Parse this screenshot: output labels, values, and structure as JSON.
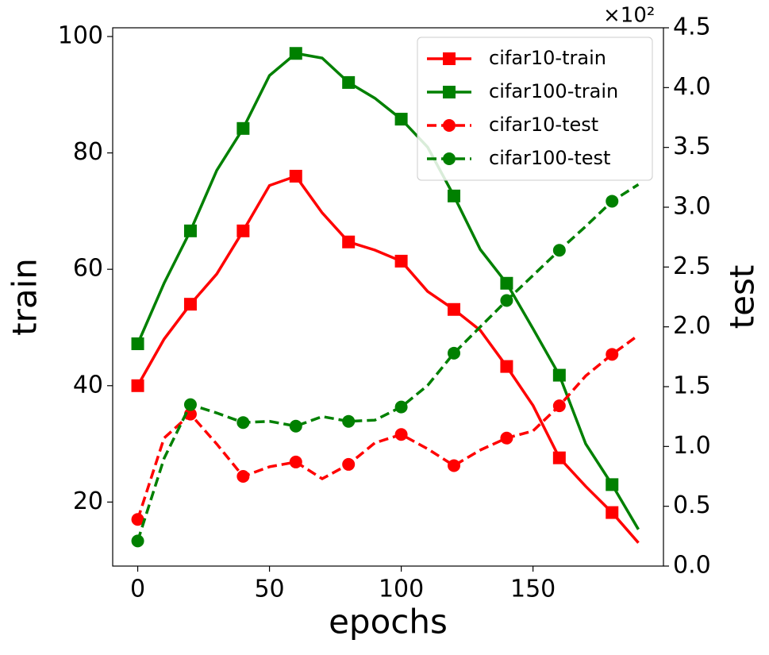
{
  "chart_data": {
    "type": "line",
    "x_label": "epochs",
    "y_label": "train",
    "y2_label": "test",
    "y2_offset_label": "×10²",
    "x": [
      0,
      10,
      20,
      30,
      40,
      50,
      60,
      70,
      80,
      90,
      100,
      110,
      120,
      130,
      140,
      150,
      160,
      170,
      180,
      190
    ],
    "xlim": [
      -9.5,
      199.5
    ],
    "xticks": [
      0,
      50,
      100,
      150
    ],
    "ylim": [
      9,
      101.5
    ],
    "yticks": [
      20,
      40,
      60,
      80,
      100
    ],
    "y2lim": [
      0,
      4.5
    ],
    "y2ticks": [
      {
        "value": 0,
        "label": "0.0"
      },
      0.5,
      {
        "value": 1,
        "label": "1.0"
      },
      1.5,
      {
        "value": 2,
        "label": "2.0"
      },
      2.5,
      {
        "value": 3,
        "label": "3.0"
      },
      3.5,
      {
        "value": 4,
        "label": "4.0"
      },
      4.5
    ],
    "legend": "upper right",
    "grid": false,
    "markevery": 2,
    "series": [
      {
        "name": "cifar10-train",
        "color": "#ff0000",
        "linestyle": "solid",
        "marker": "square",
        "values": [
          40,
          48,
          54,
          59.2,
          66.6,
          74.4,
          76,
          69.7,
          64.7,
          63.3,
          61.4,
          56.2,
          53.1,
          49.5,
          43.3,
          36.6,
          27.6,
          22.7,
          18.2,
          13
        ]
      },
      {
        "name": "cifar100-train",
        "color": "#008000",
        "linestyle": "solid",
        "marker": "square",
        "values": [
          47.2,
          57.6,
          66.6,
          77,
          84.2,
          93.3,
          97.1,
          96.3,
          92.1,
          89.4,
          85.8,
          81,
          72.6,
          63.4,
          57.6,
          49.8,
          41.8,
          30,
          23,
          15.3
        ]
      },
      {
        "name": "cifar10-test",
        "color": "#ff0000",
        "linestyle": "dashed",
        "marker": "circle",
        "axis": "y2",
        "values": [
          0.39,
          1.07,
          1.27,
          1.02,
          0.75,
          0.83,
          0.87,
          0.73,
          0.85,
          1.03,
          1.1,
          0.98,
          0.84,
          0.97,
          1.07,
          1.13,
          1.34,
          1.59,
          1.77,
          1.93
        ]
      },
      {
        "name": "cifar100-test",
        "color": "#008000",
        "linestyle": "dashed",
        "marker": "circle",
        "axis": "y2",
        "values": [
          0.21,
          0.9,
          1.35,
          1.28,
          1.2,
          1.21,
          1.17,
          1.25,
          1.21,
          1.22,
          1.33,
          1.51,
          1.78,
          2.0,
          2.22,
          2.43,
          2.64,
          2.84,
          3.05,
          3.19
        ]
      }
    ]
  }
}
